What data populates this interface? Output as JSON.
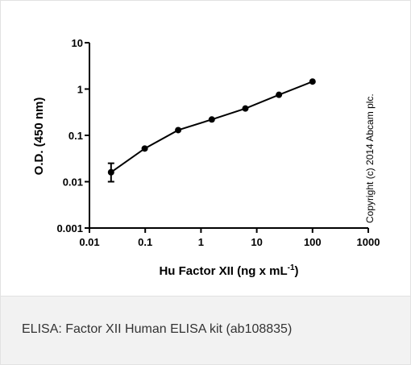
{
  "chart_data": {
    "type": "line",
    "ylabel": "O.D. (450 nm)",
    "xlabel": "Hu Factor XII (ng x mL",
    "xlabel_sup": "-1",
    "xlabel_end": ")",
    "annotation": "Copyright (c) 2014 Abcam plc.",
    "x": [
      0.0244,
      0.098,
      0.39,
      1.5625,
      6.25,
      25,
      100
    ],
    "series": [
      {
        "color": "#000000",
        "values": [
          0.016,
          0.052,
          0.13,
          0.22,
          0.38,
          0.75,
          1.45
        ],
        "yerr_lower": [
          0.006,
          null,
          null,
          null,
          null,
          null,
          null
        ],
        "yerr_upper": [
          0.009,
          null,
          null,
          null,
          null,
          null,
          null
        ]
      }
    ],
    "xlog": true,
    "ylog": true,
    "xlim": [
      0.01,
      1000
    ],
    "ylim": [
      0.001,
      10
    ],
    "xticks": [
      0.01,
      0.1,
      1,
      10,
      100,
      1000
    ],
    "yticks": [
      0.001,
      0.01,
      0.1,
      1,
      10
    ]
  },
  "caption": "ELISA: Factor XII Human ELISA kit (ab108835)"
}
